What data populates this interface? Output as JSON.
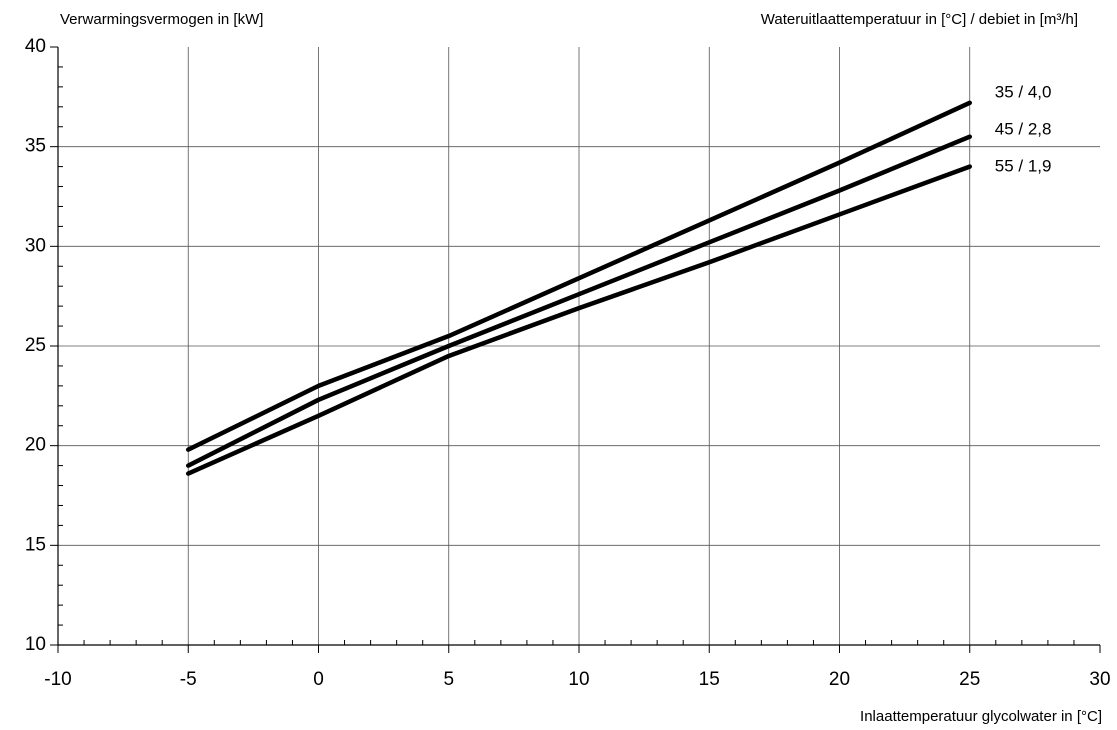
{
  "chart_data": {
    "type": "line",
    "y_axis_label": "Verwarmingsvermogen in [kW]",
    "legend_title": "Wateruitlaattemperatuur in [°C] / debiet in [m³/h]",
    "x_axis_label": "Inlaattemperatuur glycolwater in [°C]",
    "x": [
      -5,
      0,
      5,
      10,
      15,
      20,
      25
    ],
    "series": [
      {
        "name": "35 / 4,0",
        "color": "#000000",
        "values": [
          19.8,
          23.0,
          25.5,
          28.4,
          31.3,
          34.2,
          37.2
        ]
      },
      {
        "name": "45 / 2,8",
        "color": "#000000",
        "values": [
          19.0,
          22.3,
          25.0,
          27.6,
          30.2,
          32.8,
          35.5
        ]
      },
      {
        "name": "55 / 1,9",
        "color": "#000000",
        "values": [
          18.6,
          21.5,
          24.5,
          26.9,
          29.2,
          31.6,
          34.0
        ]
      }
    ],
    "xlim": [
      -10,
      30
    ],
    "xticks": [
      -10,
      -5,
      0,
      5,
      10,
      15,
      20,
      25,
      30
    ],
    "ylim": [
      10,
      40
    ],
    "yticks": [
      10,
      15,
      20,
      25,
      30,
      35,
      40
    ],
    "grid": true
  }
}
